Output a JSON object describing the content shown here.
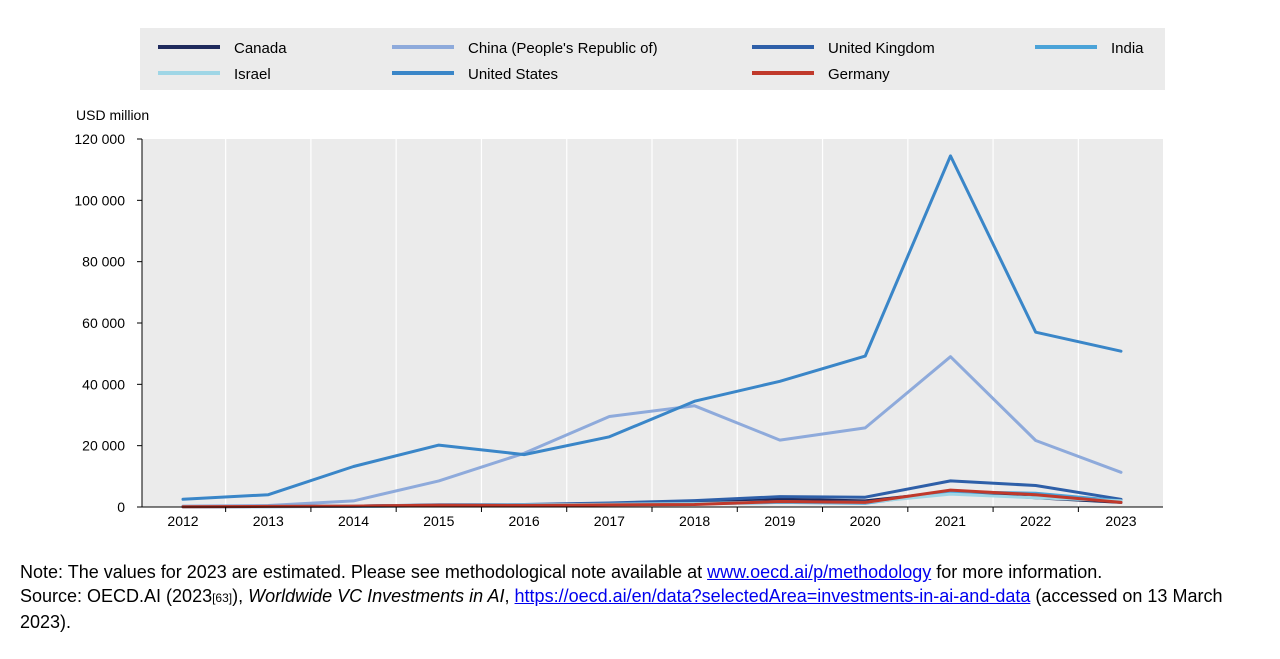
{
  "chart_data": {
    "type": "line",
    "unit_label": "USD million",
    "x": [
      "2012",
      "2013",
      "2014",
      "2015",
      "2016",
      "2017",
      "2018",
      "2019",
      "2020",
      "2021",
      "2022",
      "2023"
    ],
    "ylim": [
      0,
      120000
    ],
    "yticks": [
      0,
      20000,
      40000,
      60000,
      80000,
      100000,
      120000
    ],
    "ytick_labels": [
      "0",
      "20 000",
      "40 000",
      "60 000",
      "80 000",
      "100 000",
      "120 000"
    ],
    "grid": "vertical",
    "legend_position": "top",
    "series": [
      {
        "name": "Canada",
        "color": "#1f2a5c",
        "values": [
          100,
          200,
          300,
          600,
          700,
          1000,
          1200,
          2500,
          2000,
          5000,
          3000,
          1500
        ]
      },
      {
        "name": "China (People's Republic of)",
        "color": "#8eaadb",
        "values": [
          300,
          500,
          2000,
          8500,
          17500,
          29500,
          33000,
          21800,
          25800,
          49000,
          21700,
          11300
        ]
      },
      {
        "name": "United Kingdom",
        "color": "#2e5fa8",
        "values": [
          100,
          200,
          300,
          700,
          800,
          1300,
          2100,
          3400,
          3200,
          8500,
          7000,
          2500
        ]
      },
      {
        "name": "India",
        "color": "#4ba3d8",
        "values": [
          50,
          100,
          200,
          400,
          600,
          800,
          1000,
          1500,
          1200,
          5000,
          4500,
          2000
        ]
      },
      {
        "name": "Israel",
        "color": "#9fd6e6",
        "values": [
          100,
          200,
          300,
          500,
          700,
          900,
          1100,
          1700,
          1500,
          4200,
          3000,
          2000
        ]
      },
      {
        "name": "United States",
        "color": "#3a86c8",
        "values": [
          2500,
          4000,
          13200,
          20200,
          17100,
          22900,
          34500,
          41000,
          49200,
          114500,
          57000,
          50800
        ]
      },
      {
        "name": "Germany",
        "color": "#c0392b",
        "values": [
          100,
          200,
          300,
          600,
          500,
          700,
          800,
          1800,
          1500,
          5500,
          4000,
          1500
        ]
      }
    ]
  },
  "notes": {
    "note_prefix": "Note: The values for 2023 are estimated. Please see methodological note available at ",
    "note_link": "www.oecd.ai/p/methodology",
    "note_suffix": " for more information.",
    "source_prefix": "Source: OECD.AI (2023",
    "source_ref": "[63]",
    "source_mid": "), ",
    "source_title": "Worldwide VC Investments in AI",
    "source_sep": ", ",
    "source_link": "https://oecd.ai/en/data?selectedArea=investments-in-ai-and-data",
    "source_suffix": " (accessed on 13 March 2023)."
  }
}
